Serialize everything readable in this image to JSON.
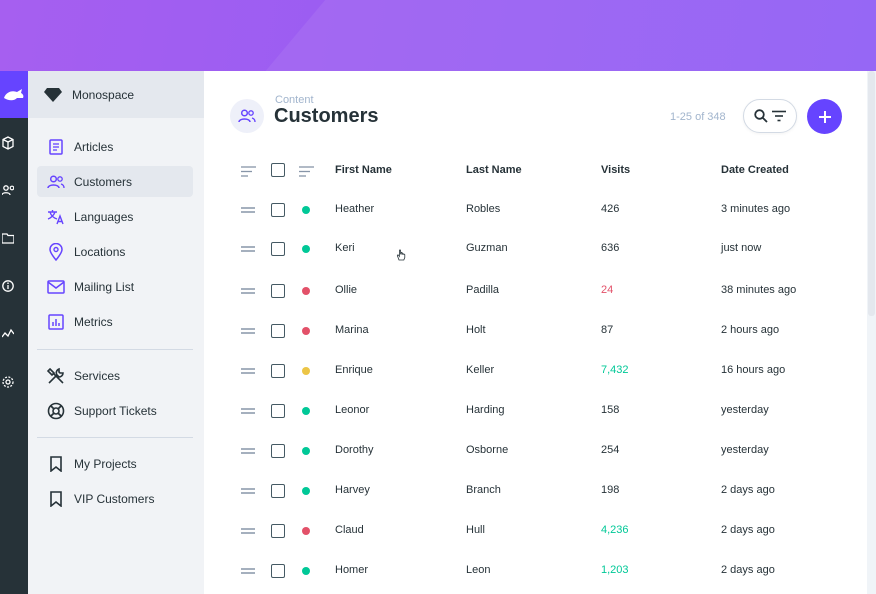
{
  "colors": {
    "accent": "#6644ff",
    "green": "#00c897",
    "red": "#e35169",
    "yellow": "#ecc546",
    "visits_default": "#263238"
  },
  "project": {
    "name": "Monospace",
    "icon": "diamond-icon"
  },
  "nav": {
    "items": [
      {
        "label": "Articles",
        "icon": "article-icon",
        "active": false
      },
      {
        "label": "Customers",
        "icon": "people-icon",
        "active": true
      },
      {
        "label": "Languages",
        "icon": "translate-icon",
        "active": false
      },
      {
        "label": "Locations",
        "icon": "place-icon",
        "active": false
      },
      {
        "label": "Mailing List",
        "icon": "mail-icon",
        "active": false
      },
      {
        "label": "Metrics",
        "icon": "chart-icon",
        "active": false
      },
      {
        "label": "Services",
        "icon": "tools-icon",
        "active": false
      },
      {
        "label": "Support Tickets",
        "icon": "support-icon",
        "active": false
      },
      {
        "label": "My Projects",
        "icon": "bookmark-icon",
        "active": false
      },
      {
        "label": "VIP Customers",
        "icon": "bookmark-icon",
        "active": false
      }
    ]
  },
  "header": {
    "breadcrumb": "Content",
    "title": "Customers",
    "counter": "1-25 of 348"
  },
  "table": {
    "columns": [
      "First Name",
      "Last Name",
      "Visits",
      "Date Created"
    ],
    "rows": [
      {
        "first": "Heather",
        "last": "Robles",
        "visits": "426",
        "visits_color": "default",
        "date": "3 minutes ago",
        "status": "green"
      },
      {
        "first": "Keri",
        "last": "Guzman",
        "visits": "636",
        "visits_color": "default",
        "date": "just now",
        "status": "green"
      },
      {
        "first": "Ollie",
        "last": "Padilla",
        "visits": "24",
        "visits_color": "red",
        "date": "38 minutes ago",
        "status": "red"
      },
      {
        "first": "Marina",
        "last": "Holt",
        "visits": "87",
        "visits_color": "default",
        "date": "2 hours ago",
        "status": "red"
      },
      {
        "first": "Enrique",
        "last": "Keller",
        "visits": "7,432",
        "visits_color": "green",
        "date": "16 hours ago",
        "status": "yellow"
      },
      {
        "first": "Leonor",
        "last": "Harding",
        "visits": "158",
        "visits_color": "default",
        "date": "yesterday",
        "status": "green"
      },
      {
        "first": "Dorothy",
        "last": "Osborne",
        "visits": "254",
        "visits_color": "default",
        "date": "yesterday",
        "status": "green"
      },
      {
        "first": "Harvey",
        "last": "Branch",
        "visits": "198",
        "visits_color": "default",
        "date": "2 days ago",
        "status": "green"
      },
      {
        "first": "Claud",
        "last": "Hull",
        "visits": "4,236",
        "visits_color": "green",
        "date": "2 days ago",
        "status": "red"
      },
      {
        "first": "Homer",
        "last": "Leon",
        "visits": "1,203",
        "visits_color": "green",
        "date": "2 days ago",
        "status": "green"
      }
    ]
  }
}
